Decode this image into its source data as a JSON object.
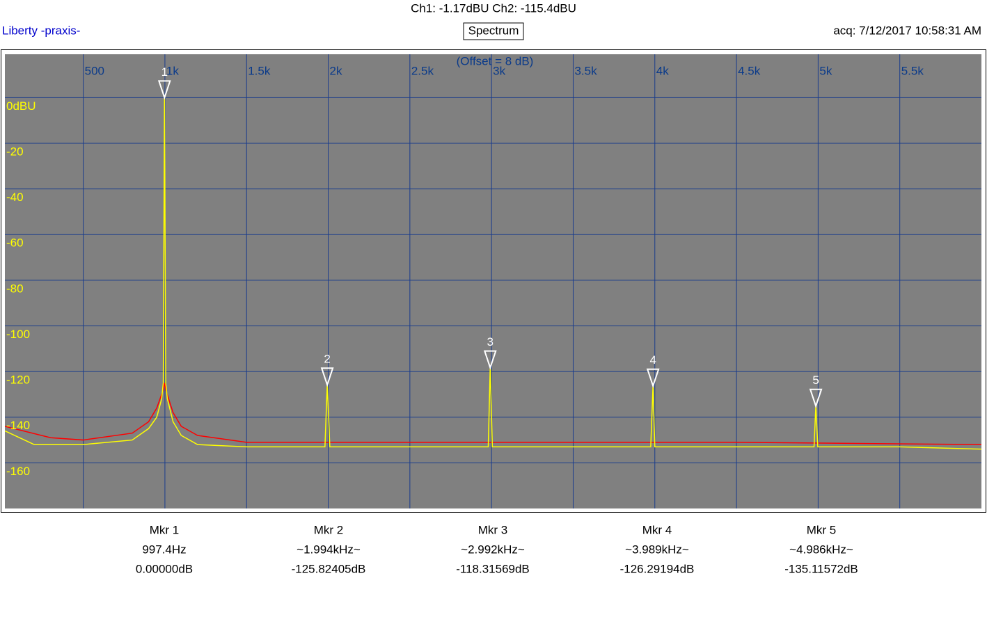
{
  "chart_data": {
    "type": "spectrum",
    "title": "Ch1: -1.17dBU  Ch2: -115.4dBU",
    "brand": "Liberty -praxis-",
    "mode": "Spectrum",
    "timestamp": "acq: 7/12/2017 10:58:31 AM",
    "annotation": "(Offset = 8 dB)",
    "xlim": [
      20,
      6000
    ],
    "ylim": [
      -180,
      19
    ],
    "xticks": [
      500,
      {
        "value": 1000,
        "label": "1k"
      },
      {
        "value": 1500,
        "label": "1.5k"
      },
      {
        "value": 2000,
        "label": "2k"
      },
      {
        "value": 2500,
        "label": "2.5k"
      },
      {
        "value": 3000,
        "label": "3k"
      },
      {
        "value": 3500,
        "label": "3.5k"
      },
      {
        "value": 4000,
        "label": "4k"
      },
      {
        "value": 4500,
        "label": "4.5k"
      },
      {
        "value": 5000,
        "label": "5k"
      },
      {
        "value": 5500,
        "label": "5.5k"
      }
    ],
    "yticks": [
      {
        "value": 0,
        "label": "0dBU"
      },
      -20,
      -40,
      -60,
      -80,
      -100,
      -120,
      -140,
      -160
    ],
    "grid": true,
    "series": [
      {
        "name": "Ch2",
        "color": "#ff0000",
        "x": [
          20,
          300,
          500,
          800,
          900,
          950,
          990,
          997.4,
          1005,
          1050,
          1100,
          1200,
          1500,
          2500,
          3500,
          4500,
          6000
        ],
        "values": [
          -144,
          -149,
          -150,
          -147,
          -142,
          -136,
          -128,
          -125,
          -128,
          -138,
          -144,
          -148,
          -151,
          -151,
          -151,
          -151,
          -152
        ]
      },
      {
        "name": "Ch1",
        "color": "#ffff00",
        "x": [
          20,
          200,
          500,
          800,
          900,
          950,
          980,
          990,
          997.4,
          1005,
          1015,
          1050,
          1100,
          1200,
          1500,
          1980,
          1994,
          2010,
          2500,
          2980,
          2992,
          3005,
          3500,
          3975,
          3989,
          4000,
          4500,
          4975,
          4986,
          4998,
          5500,
          6000
        ],
        "values": [
          -146,
          -152,
          -152,
          -150,
          -145,
          -140,
          -132,
          -125,
          0,
          -125,
          -132,
          -142,
          -148,
          -152,
          -153,
          -153,
          -126,
          -153,
          -153,
          -153,
          -118,
          -153,
          -153,
          -153,
          -126,
          -153,
          -153,
          -153,
          -135,
          -153,
          -153,
          -154
        ]
      }
    ],
    "markers": [
      {
        "index": "1",
        "name": "Mkr 1",
        "x": 997.4,
        "y": 0,
        "freq_label": "997.4Hz",
        "level_label": "0.00000dB"
      },
      {
        "index": "2",
        "name": "Mkr 2",
        "x": 1994,
        "y": -125.82405,
        "freq_label": "~1.994kHz~",
        "level_label": "-125.82405dB"
      },
      {
        "index": "3",
        "name": "Mkr 3",
        "x": 2992,
        "y": -118.31569,
        "freq_label": "~2.992kHz~",
        "level_label": "-118.31569dB"
      },
      {
        "index": "4",
        "name": "Mkr 4",
        "x": 3989,
        "y": -126.29194,
        "freq_label": "~3.989kHz~",
        "level_label": "-126.29194dB"
      },
      {
        "index": "5",
        "name": "Mkr 5",
        "x": 4986,
        "y": -135.11572,
        "freq_label": "~4.986kHz~",
        "level_label": "-135.11572dB"
      }
    ]
  }
}
